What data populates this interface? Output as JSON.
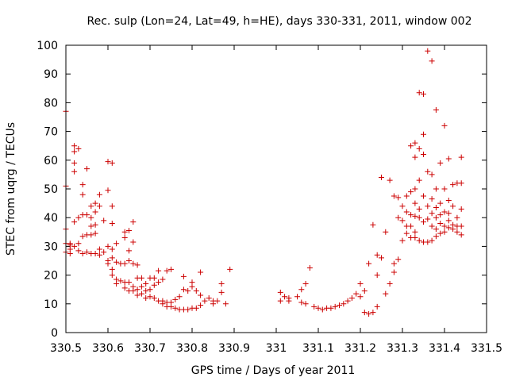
{
  "chart_data": {
    "type": "scatter",
    "title": "Rec. sulp (Lon=24, Lat=49, h=HE), days 330-331, 2011, window 002",
    "xlabel": "GPS time / Days of year 2011",
    "ylabel": "STEC from uqrg / TECUs",
    "xlim": [
      330.5,
      331.5
    ],
    "ylim": [
      0,
      100
    ],
    "xticks": [
      330.5,
      330.6,
      330.7,
      330.8,
      330.9,
      331.0,
      331.1,
      331.2,
      331.3,
      331.4,
      331.5
    ],
    "xtick_labels": [
      "330.5",
      "330.6",
      "330.7",
      "330.8",
      "330.9",
      "331",
      "331.1",
      "331.2",
      "331.3",
      "331.4",
      "331.5"
    ],
    "yticks": [
      0,
      10,
      20,
      30,
      40,
      50,
      60,
      70,
      80,
      90,
      100
    ],
    "ytick_labels": [
      "0",
      "10",
      "20",
      "30",
      "40",
      "50",
      "60",
      "70",
      "80",
      "90",
      "100"
    ],
    "grid": false,
    "marker": "plus",
    "color": "#cc0000",
    "points": [
      [
        330.5,
        77
      ],
      [
        330.5,
        51
      ],
      [
        330.5,
        36
      ],
      [
        330.5,
        31
      ],
      [
        330.5,
        28
      ],
      [
        330.51,
        31
      ],
      [
        330.51,
        30.5
      ],
      [
        330.51,
        29
      ],
      [
        330.51,
        27.5
      ],
      [
        330.52,
        65
      ],
      [
        330.52,
        63
      ],
      [
        330.52,
        59
      ],
      [
        330.52,
        56
      ],
      [
        330.52,
        38.5
      ],
      [
        330.52,
        30
      ],
      [
        330.53,
        64
      ],
      [
        330.53,
        40
      ],
      [
        330.53,
        31
      ],
      [
        330.53,
        28.5
      ],
      [
        330.54,
        51.5
      ],
      [
        330.54,
        48
      ],
      [
        330.54,
        41
      ],
      [
        330.54,
        33.5
      ],
      [
        330.54,
        27.5
      ],
      [
        330.55,
        57
      ],
      [
        330.55,
        41
      ],
      [
        330.55,
        34
      ],
      [
        330.55,
        28
      ],
      [
        330.56,
        44
      ],
      [
        330.56,
        40
      ],
      [
        330.56,
        37
      ],
      [
        330.56,
        34
      ],
      [
        330.56,
        27.5
      ],
      [
        330.57,
        45
      ],
      [
        330.57,
        42
      ],
      [
        330.57,
        37.5
      ],
      [
        330.57,
        34.5
      ],
      [
        330.57,
        27.5
      ],
      [
        330.58,
        48
      ],
      [
        330.58,
        44
      ],
      [
        330.58,
        29
      ],
      [
        330.58,
        27
      ],
      [
        330.59,
        39
      ],
      [
        330.59,
        28
      ],
      [
        330.6,
        59.5
      ],
      [
        330.6,
        49.5
      ],
      [
        330.6,
        30
      ],
      [
        330.6,
        25
      ],
      [
        330.6,
        24
      ],
      [
        330.61,
        59
      ],
      [
        330.61,
        44
      ],
      [
        330.61,
        38
      ],
      [
        330.61,
        29
      ],
      [
        330.61,
        26
      ],
      [
        330.61,
        22
      ],
      [
        330.61,
        20
      ],
      [
        330.62,
        31
      ],
      [
        330.62,
        24.5
      ],
      [
        330.62,
        18.5
      ],
      [
        330.62,
        17
      ],
      [
        330.63,
        24
      ],
      [
        330.63,
        18
      ],
      [
        330.64,
        35
      ],
      [
        330.64,
        33
      ],
      [
        330.64,
        24
      ],
      [
        330.64,
        17.5
      ],
      [
        330.64,
        15.5
      ],
      [
        330.65,
        35.5
      ],
      [
        330.65,
        28.5
      ],
      [
        330.65,
        25
      ],
      [
        330.65,
        17.5
      ],
      [
        330.65,
        14.5
      ],
      [
        330.66,
        38.5
      ],
      [
        330.66,
        31.5
      ],
      [
        330.66,
        24
      ],
      [
        330.66,
        16
      ],
      [
        330.66,
        14.5
      ],
      [
        330.67,
        23.5
      ],
      [
        330.67,
        19
      ],
      [
        330.67,
        15
      ],
      [
        330.67,
        13
      ],
      [
        330.68,
        19
      ],
      [
        330.68,
        16
      ],
      [
        330.68,
        13.5
      ],
      [
        330.69,
        17
      ],
      [
        330.69,
        14.5
      ],
      [
        330.69,
        12
      ],
      [
        330.7,
        19
      ],
      [
        330.7,
        15
      ],
      [
        330.7,
        12.5
      ],
      [
        330.71,
        19
      ],
      [
        330.71,
        16.5
      ],
      [
        330.71,
        12
      ],
      [
        330.72,
        21.5
      ],
      [
        330.72,
        17.5
      ],
      [
        330.72,
        11
      ],
      [
        330.73,
        18.5
      ],
      [
        330.73,
        11
      ],
      [
        330.73,
        10
      ],
      [
        330.74,
        21.5
      ],
      [
        330.74,
        10.5
      ],
      [
        330.74,
        9
      ],
      [
        330.75,
        22
      ],
      [
        330.75,
        10.5
      ],
      [
        330.75,
        9
      ],
      [
        330.76,
        11.5
      ],
      [
        330.76,
        8.5
      ],
      [
        330.77,
        12.5
      ],
      [
        330.77,
        8
      ],
      [
        330.78,
        19.5
      ],
      [
        330.78,
        15
      ],
      [
        330.78,
        8
      ],
      [
        330.79,
        14.5
      ],
      [
        330.79,
        8
      ],
      [
        330.8,
        17.5
      ],
      [
        330.8,
        16
      ],
      [
        330.8,
        8.5
      ],
      [
        330.81,
        14.5
      ],
      [
        330.81,
        8.5
      ],
      [
        330.82,
        21
      ],
      [
        330.82,
        13
      ],
      [
        330.82,
        9.5
      ],
      [
        330.83,
        11
      ],
      [
        330.84,
        12
      ],
      [
        330.85,
        11
      ],
      [
        330.85,
        10
      ],
      [
        330.86,
        11
      ],
      [
        330.87,
        17
      ],
      [
        330.87,
        14
      ],
      [
        330.88,
        10
      ],
      [
        330.89,
        22
      ],
      [
        331.01,
        14
      ],
      [
        331.01,
        11
      ],
      [
        331.02,
        12.5
      ],
      [
        331.03,
        12
      ],
      [
        331.03,
        11
      ],
      [
        331.05,
        12.5
      ],
      [
        331.06,
        15
      ],
      [
        331.06,
        10.5
      ],
      [
        331.07,
        17
      ],
      [
        331.07,
        10
      ],
      [
        331.08,
        22.5
      ],
      [
        331.09,
        9
      ],
      [
        331.1,
        8.5
      ],
      [
        331.11,
        8
      ],
      [
        331.12,
        8.5
      ],
      [
        331.13,
        8.5
      ],
      [
        331.14,
        9
      ],
      [
        331.15,
        9.5
      ],
      [
        331.16,
        10
      ],
      [
        331.17,
        11
      ],
      [
        331.18,
        12
      ],
      [
        331.19,
        13.5
      ],
      [
        331.2,
        17
      ],
      [
        331.2,
        12.5
      ],
      [
        331.21,
        7
      ],
      [
        331.21,
        14.5
      ],
      [
        331.22,
        24
      ],
      [
        331.22,
        6.5
      ],
      [
        331.23,
        37.5
      ],
      [
        331.23,
        7
      ],
      [
        331.24,
        27
      ],
      [
        331.24,
        20
      ],
      [
        331.24,
        9
      ],
      [
        331.25,
        54
      ],
      [
        331.25,
        26
      ],
      [
        331.26,
        35
      ],
      [
        331.26,
        13.5
      ],
      [
        331.27,
        53
      ],
      [
        331.27,
        17
      ],
      [
        331.28,
        47.5
      ],
      [
        331.28,
        24
      ],
      [
        331.28,
        21
      ],
      [
        331.29,
        47
      ],
      [
        331.29,
        40
      ],
      [
        331.29,
        25.5
      ],
      [
        331.3,
        44
      ],
      [
        331.3,
        39
      ],
      [
        331.3,
        32
      ],
      [
        331.31,
        47.5
      ],
      [
        331.31,
        42
      ],
      [
        331.31,
        37
      ],
      [
        331.31,
        34.5
      ],
      [
        331.32,
        65
      ],
      [
        331.32,
        49
      ],
      [
        331.32,
        41
      ],
      [
        331.32,
        37
      ],
      [
        331.32,
        33
      ],
      [
        331.33,
        66
      ],
      [
        331.33,
        61
      ],
      [
        331.33,
        50
      ],
      [
        331.33,
        45
      ],
      [
        331.33,
        40.5
      ],
      [
        331.33,
        35
      ],
      [
        331.33,
        33
      ],
      [
        331.34,
        83.5
      ],
      [
        331.34,
        64
      ],
      [
        331.34,
        53
      ],
      [
        331.34,
        43
      ],
      [
        331.34,
        40
      ],
      [
        331.34,
        32
      ],
      [
        331.35,
        83
      ],
      [
        331.35,
        69
      ],
      [
        331.35,
        62
      ],
      [
        331.35,
        47.5
      ],
      [
        331.35,
        38.5
      ],
      [
        331.35,
        31.5
      ],
      [
        331.36,
        98
      ],
      [
        331.36,
        56
      ],
      [
        331.36,
        44
      ],
      [
        331.36,
        39.5
      ],
      [
        331.36,
        31.5
      ],
      [
        331.37,
        94.5
      ],
      [
        331.37,
        55
      ],
      [
        331.37,
        46.5
      ],
      [
        331.37,
        41.5
      ],
      [
        331.37,
        37
      ],
      [
        331.37,
        32
      ],
      [
        331.38,
        77.5
      ],
      [
        331.38,
        50
      ],
      [
        331.38,
        43.5
      ],
      [
        331.38,
        40
      ],
      [
        331.38,
        36
      ],
      [
        331.38,
        33.5
      ],
      [
        331.39,
        59
      ],
      [
        331.39,
        45
      ],
      [
        331.39,
        41
      ],
      [
        331.39,
        38
      ],
      [
        331.39,
        34.5
      ],
      [
        331.4,
        72
      ],
      [
        331.4,
        50
      ],
      [
        331.4,
        42
      ],
      [
        331.4,
        37
      ],
      [
        331.4,
        35
      ],
      [
        331.41,
        60.5
      ],
      [
        331.41,
        46
      ],
      [
        331.41,
        41.5
      ],
      [
        331.41,
        39
      ],
      [
        331.41,
        36.5
      ],
      [
        331.42,
        51.5
      ],
      [
        331.42,
        44
      ],
      [
        331.42,
        37.5
      ],
      [
        331.42,
        36
      ],
      [
        331.43,
        52
      ],
      [
        331.43,
        40
      ],
      [
        331.43,
        37
      ],
      [
        331.43,
        35
      ],
      [
        331.44,
        61
      ],
      [
        331.44,
        52
      ],
      [
        331.44,
        43
      ],
      [
        331.44,
        37
      ],
      [
        331.44,
        34
      ]
    ]
  }
}
